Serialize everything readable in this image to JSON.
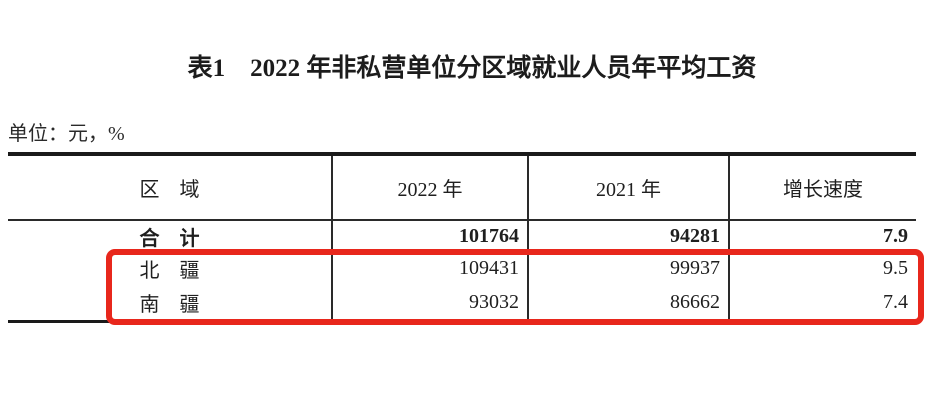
{
  "title": "表1　2022 年非私营单位分区域就业人员年平均工资",
  "unit_note": "单位：元，%",
  "table": {
    "columns": [
      "区　域",
      "2022 年",
      "2021 年",
      "增长速度"
    ],
    "rows": [
      {
        "label": "合　计",
        "y2022": "101764",
        "y2021": "94281",
        "growth": "7.9"
      },
      {
        "label": "北　疆",
        "y2022": "109431",
        "y2021": "99937",
        "growth": "9.5"
      },
      {
        "label": "南　疆",
        "y2022": "93032",
        "y2021": "86662",
        "growth": "7.4"
      }
    ]
  },
  "highlight": {
    "color": "#e8271c",
    "highlighted_rows": [
      "北　疆",
      "南　疆"
    ]
  },
  "chart_data": {
    "type": "table",
    "title": "表1　2022 年非私营单位分区域就业人员年平均工资",
    "unit": "单位：元，%",
    "columns": [
      "区域",
      "2022年",
      "2021年",
      "增长速度"
    ],
    "rows": [
      [
        "合计",
        101764,
        94281,
        7.9
      ],
      [
        "北疆",
        109431,
        99937,
        9.5
      ],
      [
        "南疆",
        93032,
        86662,
        7.4
      ]
    ]
  }
}
